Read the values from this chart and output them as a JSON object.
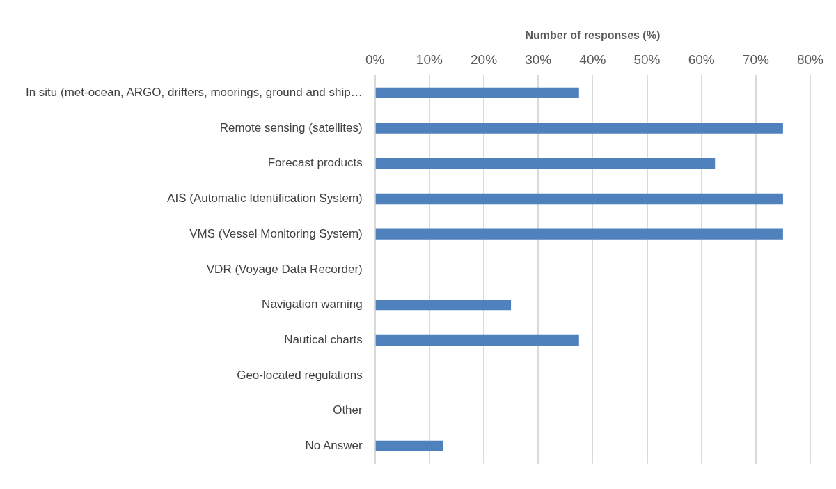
{
  "chart_data": {
    "type": "bar",
    "orientation": "horizontal",
    "xlabel": "Number of responses (%)",
    "categories": [
      "In situ (met-ocean, ARGO, drifters, moorings, ground and ship…",
      "Remote sensing (satellites)",
      "Forecast products",
      "AIS (Automatic Identification System)",
      "VMS (Vessel Monitoring System)",
      "VDR (Voyage Data Recorder)",
      "Navigation warning",
      "Nautical charts",
      "Geo-located regulations",
      "Other",
      "No Answer"
    ],
    "values": [
      37.5,
      75,
      62.5,
      75,
      75,
      0,
      25,
      37.5,
      0,
      0,
      12.5
    ],
    "color": "#4f81bd",
    "xlim": [
      0,
      80
    ],
    "xticks": [
      {
        "value": 0,
        "label": "0%"
      },
      {
        "value": 10,
        "label": "10%"
      },
      {
        "value": 20,
        "label": "20%"
      },
      {
        "value": 30,
        "label": "30%"
      },
      {
        "value": 40,
        "label": "40%"
      },
      {
        "value": 50,
        "label": "50%"
      },
      {
        "value": 60,
        "label": "60%"
      },
      {
        "value": 70,
        "label": "70%"
      },
      {
        "value": 80,
        "label": "80%"
      }
    ],
    "grid": "x",
    "legend": false
  }
}
